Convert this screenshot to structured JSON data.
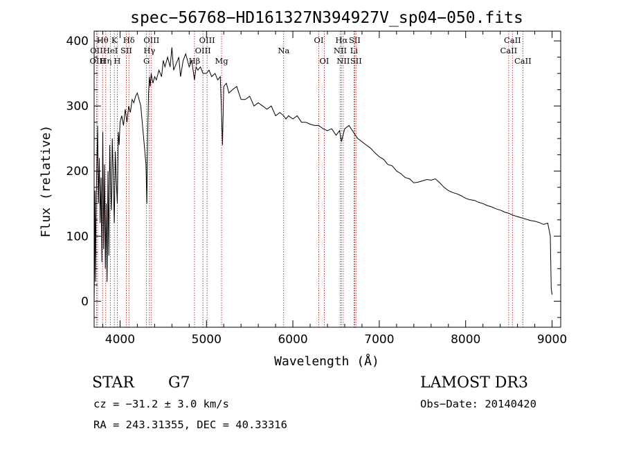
{
  "chart_data": {
    "type": "line",
    "title": "spec−56768−HD161327N394927V_sp04−050.fits",
    "xlabel": "Wavelength (Å)",
    "ylabel": "Flux (relative)",
    "xlim": [
      3700,
      9100
    ],
    "ylim": [
      -40,
      415
    ],
    "xticks": [
      4000,
      5000,
      6000,
      7000,
      8000,
      9000
    ],
    "yticks": [
      0,
      100,
      200,
      300,
      400
    ],
    "grid": false,
    "series": [
      {
        "name": "flux",
        "x": [
          3700,
          3705,
          3710,
          3715,
          3720,
          3730,
          3740,
          3750,
          3760,
          3770,
          3780,
          3790,
          3800,
          3810,
          3820,
          3830,
          3840,
          3850,
          3860,
          3870,
          3880,
          3890,
          3900,
          3910,
          3920,
          3933,
          3945,
          3955,
          3968,
          3980,
          3990,
          4000,
          4020,
          4040,
          4060,
          4080,
          4100,
          4120,
          4140,
          4160,
          4180,
          4200,
          4220,
          4240,
          4260,
          4280,
          4300,
          4310,
          4320,
          4330,
          4340,
          4350,
          4360,
          4380,
          4400,
          4420,
          4450,
          4480,
          4500,
          4520,
          4550,
          4580,
          4600,
          4620,
          4650,
          4680,
          4700,
          4730,
          4760,
          4800,
          4830,
          4861,
          4880,
          4900,
          4930,
          4960,
          5000,
          5030,
          5060,
          5100,
          5130,
          5160,
          5172,
          5185,
          5200,
          5230,
          5260,
          5300,
          5350,
          5400,
          5450,
          5500,
          5550,
          5600,
          5650,
          5700,
          5750,
          5800,
          5850,
          5893,
          5920,
          5950,
          6000,
          6050,
          6100,
          6150,
          6200,
          6250,
          6300,
          6350,
          6400,
          6450,
          6500,
          6540,
          6563,
          6580,
          6600,
          6650,
          6700,
          6750,
          6800,
          6850,
          6900,
          6950,
          7000,
          7050,
          7100,
          7150,
          7200,
          7250,
          7300,
          7350,
          7400,
          7450,
          7500,
          7550,
          7600,
          7650,
          7700,
          7750,
          7800,
          7850,
          7900,
          7950,
          8000,
          8050,
          8100,
          8150,
          8200,
          8250,
          8300,
          8350,
          8400,
          8450,
          8500,
          8550,
          8600,
          8650,
          8700,
          8750,
          8800,
          8850,
          8900,
          8950,
          8980,
          8990,
          9000
        ],
        "values": [
          0,
          60,
          170,
          30,
          110,
          200,
          270,
          150,
          220,
          120,
          190,
          60,
          260,
          80,
          210,
          50,
          150,
          30,
          200,
          70,
          240,
          180,
          140,
          250,
          200,
          120,
          230,
          190,
          150,
          260,
          240,
          275,
          285,
          270,
          295,
          275,
          300,
          290,
          310,
          305,
          315,
          320,
          310,
          300,
          270,
          240,
          210,
          150,
          260,
          320,
          345,
          330,
          350,
          335,
          345,
          340,
          355,
          345,
          370,
          360,
          375,
          360,
          390,
          355,
          365,
          375,
          345,
          370,
          380,
          360,
          370,
          340,
          360,
          355,
          360,
          350,
          350,
          355,
          345,
          350,
          340,
          345,
          300,
          240,
          330,
          335,
          320,
          325,
          330,
          310,
          310,
          315,
          300,
          305,
          300,
          295,
          300,
          285,
          290,
          285,
          280,
          285,
          280,
          285,
          275,
          275,
          272,
          270,
          270,
          265,
          262,
          265,
          255,
          262,
          245,
          255,
          265,
          270,
          260,
          250,
          245,
          240,
          235,
          228,
          222,
          218,
          210,
          208,
          200,
          196,
          190,
          188,
          182,
          183,
          185,
          187,
          186,
          188,
          182,
          175,
          170,
          167,
          165,
          162,
          158,
          156,
          155,
          152,
          150,
          147,
          145,
          142,
          140,
          137,
          135,
          132,
          130,
          128,
          126,
          124,
          123,
          121,
          118,
          120,
          100,
          20,
          10
        ]
      }
    ],
    "lines": [
      {
        "label": "Hθ",
        "wl": 3798,
        "row": 1
      },
      {
        "label": "OII",
        "wl": 3727,
        "row": 2
      },
      {
        "label": "OIII",
        "wl": 3740,
        "row": 3
      },
      {
        "label": "K",
        "wl": 3934,
        "row": 1
      },
      {
        "label": "Hδ",
        "wl": 4102,
        "row": 1
      },
      {
        "label": "Hη",
        "wl": 3835,
        "row": 3
      },
      {
        "label": "HeI",
        "wl": 3889,
        "row": 2
      },
      {
        "label": "H",
        "wl": 3968,
        "row": 3
      },
      {
        "label": "SII",
        "wl": 4072,
        "row": 2
      },
      {
        "label": "OIII",
        "wl": 4363,
        "row": 1
      },
      {
        "label": "Hγ",
        "wl": 4340,
        "row": 2
      },
      {
        "label": "G",
        "wl": 4306,
        "row": 3
      },
      {
        "label": "OIII",
        "wl": 5007,
        "row": 1
      },
      {
        "label": "OIII",
        "wl": 4959,
        "row": 2
      },
      {
        "label": "Hβ",
        "wl": 4861,
        "row": 3
      },
      {
        "label": "Mg",
        "wl": 5175,
        "row": 3
      },
      {
        "label": "Na",
        "wl": 5893,
        "row": 2
      },
      {
        "label": "OI",
        "wl": 6300,
        "row": 1
      },
      {
        "label": "OI",
        "wl": 6364,
        "row": 3
      },
      {
        "label": "Hα",
        "wl": 6563,
        "row": 1
      },
      {
        "label": "SII",
        "wl": 6716,
        "row": 1
      },
      {
        "label": "NII",
        "wl": 6548,
        "row": 2
      },
      {
        "label": "Li",
        "wl": 6708,
        "row": 2
      },
      {
        "label": "NII",
        "wl": 6583,
        "row": 3
      },
      {
        "label": "SII",
        "wl": 6731,
        "row": 3
      },
      {
        "label": "CaII",
        "wl": 8542,
        "row": 1
      },
      {
        "label": "CaII",
        "wl": 8498,
        "row": 2
      },
      {
        "label": "CaII",
        "wl": 8662,
        "row": 3
      }
    ]
  },
  "footer": {
    "class_label": "STAR",
    "subclass": "G7",
    "survey": "LAMOST DR3",
    "cz": "cz = −31.2 ± 3.0 km/s",
    "obs_date": "Obs−Date: 20140420",
    "coords": "RA = 243.31355, DEC =  40.33316"
  },
  "colors": {
    "spectrum": "#000000",
    "line_markers": "#b22222",
    "axes": "#000000"
  }
}
